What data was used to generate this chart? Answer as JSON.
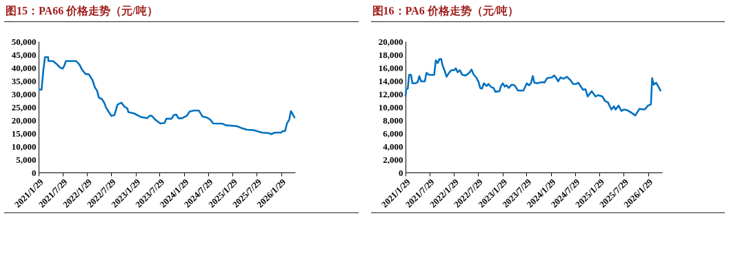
{
  "chart_data": [
    {
      "type": "line",
      "title": "图15：PA66 价格走势（元/吨）",
      "xlim": [
        "2021-01-29",
        "2026-05-15"
      ],
      "ylim": [
        0,
        50000
      ],
      "yticks": [
        {
          "value": 0,
          "label": "0"
        },
        {
          "value": 5000,
          "label": "5,000"
        },
        {
          "value": 10000,
          "label": "10,000"
        },
        {
          "value": 15000,
          "label": "15,000"
        },
        {
          "value": 20000,
          "label": "20,000"
        },
        {
          "value": 25000,
          "label": "25,000"
        },
        {
          "value": 30000,
          "label": "30,000"
        },
        {
          "value": 35000,
          "label": "35,000"
        },
        {
          "value": 40000,
          "label": "40,000"
        },
        {
          "value": 45000,
          "label": "45,000"
        },
        {
          "value": 50000,
          "label": "50,000"
        }
      ],
      "xticks": [
        {
          "value": "2021-01-29",
          "label": "2021/1/29"
        },
        {
          "value": "2021-07-29",
          "label": "2021/7/29"
        },
        {
          "value": "2022-01-29",
          "label": "2022/1/29"
        },
        {
          "value": "2022-07-29",
          "label": "2022/7/29"
        },
        {
          "value": "2023-01-29",
          "label": "2023/1/29"
        },
        {
          "value": "2023-07-29",
          "label": "2023/7/29"
        },
        {
          "value": "2024-01-29",
          "label": "2024/1/29"
        },
        {
          "value": "2024-07-29",
          "label": "2024/7/29"
        },
        {
          "value": "2025-01-29",
          "label": "2025/1/29"
        },
        {
          "value": "2025-07-29",
          "label": "2025/7/29"
        },
        {
          "value": "2026-01-29",
          "label": "2026/1/29"
        }
      ],
      "marker": "none",
      "line_style": "solid",
      "x": [
        "2021-01-29",
        "2021-02-20",
        "2021-03-06",
        "2021-03-18",
        "2021-04-10",
        "2021-04-13",
        "2021-05-18",
        "2021-06-13",
        "2021-07-10",
        "2021-07-30",
        "2021-08-13",
        "2021-08-22",
        "2021-11-08",
        "2021-12-04",
        "2021-12-22",
        "2022-01-17",
        "2022-02-12",
        "2022-03-11",
        "2022-03-28",
        "2022-04-14",
        "2022-04-28",
        "2022-05-19",
        "2022-06-06",
        "2022-06-23",
        "2022-07-10",
        "2022-07-31",
        "2022-08-23",
        "2022-09-15",
        "2022-10-14",
        "2022-11-06",
        "2022-11-27",
        "2022-12-06",
        "2023-01-19",
        "2023-03-13",
        "2023-04-26",
        "2023-05-14",
        "2023-05-31",
        "2023-06-27",
        "2023-08-04",
        "2023-09-04",
        "2023-09-18",
        "2023-10-27",
        "2023-11-13",
        "2023-12-01",
        "2023-12-18",
        "2024-01-14",
        "2024-02-18",
        "2024-03-11",
        "2024-04-10",
        "2024-05-20",
        "2024-06-15",
        "2024-07-15",
        "2024-08-10",
        "2024-09-05",
        "2024-11-14",
        "2024-12-10",
        "2025-02-27",
        "2025-04-03",
        "2025-05-17",
        "2025-07-08",
        "2025-09-07",
        "2025-10-30",
        "2025-11-16",
        "2025-12-12",
        "2026-01-28",
        "2026-02-11",
        "2026-02-28",
        "2026-03-14",
        "2026-03-31",
        "2026-04-13",
        "2026-04-30",
        "2026-05-09",
        "2026-05-15"
      ],
      "series": [
        {
          "color": "#0070c0",
          "values": [
            31600,
            31600,
            39200,
            44000,
            44000,
            42500,
            42500,
            41400,
            40000,
            39600,
            41000,
            42500,
            42500,
            41000,
            39200,
            37600,
            37400,
            35200,
            32500,
            31200,
            28500,
            28100,
            26700,
            24500,
            23200,
            21600,
            21900,
            25900,
            26600,
            25100,
            24500,
            23000,
            22500,
            21100,
            20700,
            21600,
            21600,
            20100,
            18700,
            18900,
            20500,
            20500,
            21900,
            22100,
            20700,
            20700,
            21600,
            23200,
            23600,
            23600,
            21400,
            21000,
            20300,
            18700,
            18600,
            18000,
            17700,
            17000,
            16300,
            16100,
            15200,
            15000,
            14600,
            15200,
            15200,
            15800,
            15800,
            18700,
            20100,
            23400,
            21900,
            21000,
            21100
          ]
        }
      ]
    },
    {
      "type": "line",
      "title": "图16：PA6 价格走势（元/吨）",
      "xlim": [
        "2021-01-29",
        "2026-05-15"
      ],
      "ylim": [
        0,
        20000
      ],
      "yticks": [
        {
          "value": 0,
          "label": "0"
        },
        {
          "value": 2000,
          "label": "2,000"
        },
        {
          "value": 4000,
          "label": "4,000"
        },
        {
          "value": 6000,
          "label": "6,000"
        },
        {
          "value": 8000,
          "label": "8,000"
        },
        {
          "value": 10000,
          "label": "10,000"
        },
        {
          "value": 12000,
          "label": "12,000"
        },
        {
          "value": 14000,
          "label": "14,000"
        },
        {
          "value": 16000,
          "label": "16,000"
        },
        {
          "value": 18000,
          "label": "18,000"
        },
        {
          "value": 20000,
          "label": "20,000"
        }
      ],
      "xticks": [
        {
          "value": "2021-01-29",
          "label": "2021/1/29"
        },
        {
          "value": "2021-07-29",
          "label": "2021/7/29"
        },
        {
          "value": "2022-01-29",
          "label": "2022/1/29"
        },
        {
          "value": "2022-07-29",
          "label": "2022/7/29"
        },
        {
          "value": "2023-01-29",
          "label": "2023/1/29"
        },
        {
          "value": "2023-07-29",
          "label": "2023/7/29"
        },
        {
          "value": "2024-01-29",
          "label": "2024/1/29"
        },
        {
          "value": "2024-07-29",
          "label": "2024/7/29"
        },
        {
          "value": "2025-01-29",
          "label": "2025/1/29"
        },
        {
          "value": "2025-07-29",
          "label": "2025/7/29"
        },
        {
          "value": "2026-01-29",
          "label": "2026/1/29"
        }
      ],
      "marker": "none",
      "line_style": "solid",
      "x": [
        "2021-01-29",
        "2021-02-03",
        "2021-02-15",
        "2021-02-25",
        "2021-03-11",
        "2021-03-22",
        "2021-04-13",
        "2021-05-01",
        "2021-05-13",
        "2021-05-27",
        "2021-06-23",
        "2021-07-06",
        "2021-07-23",
        "2021-09-02",
        "2021-09-14",
        "2021-09-28",
        "2021-10-12",
        "2021-10-25",
        "2021-11-03",
        "2021-11-20",
        "2021-12-04",
        "2021-12-22",
        "2022-01-08",
        "2022-01-29",
        "2022-02-12",
        "2022-02-25",
        "2022-03-14",
        "2022-04-01",
        "2022-04-27",
        "2022-05-24",
        "2022-06-10",
        "2022-06-24",
        "2022-07-15",
        "2022-08-02",
        "2022-08-14",
        "2022-08-28",
        "2022-09-11",
        "2022-10-02",
        "2022-10-16",
        "2022-11-06",
        "2022-11-23",
        "2022-12-07",
        "2023-01-06",
        "2023-01-18",
        "2023-02-01",
        "2023-02-15",
        "2023-02-28",
        "2023-03-17",
        "2023-04-09",
        "2023-04-30",
        "2023-05-26",
        "2023-07-06",
        "2023-07-31",
        "2023-08-17",
        "2023-08-31",
        "2023-09-14",
        "2023-09-26",
        "2023-10-14",
        "2023-11-26",
        "2023-12-10",
        "2024-01-01",
        "2024-02-04",
        "2024-02-22",
        "2024-03-06",
        "2024-03-24",
        "2024-04-10",
        "2024-05-01",
        "2024-05-28",
        "2024-06-23",
        "2024-07-14",
        "2024-08-06",
        "2024-08-23",
        "2024-09-10",
        "2024-09-27",
        "2024-10-15",
        "2024-11-01",
        "2024-12-01",
        "2024-12-29",
        "2025-01-18",
        "2025-02-19",
        "2025-03-12",
        "2025-04-02",
        "2025-04-28",
        "2025-05-17",
        "2025-05-30",
        "2025-06-21",
        "2025-07-12",
        "2025-08-02",
        "2025-08-25",
        "2025-09-20",
        "2025-10-25",
        "2025-11-25",
        "2026-01-03",
        "2026-01-29",
        "2026-02-20",
        "2026-03-01",
        "2026-03-13",
        "2026-03-31",
        "2026-04-17",
        "2026-05-05"
      ],
      "series": [
        {
          "color": "#0070c0",
          "values": [
            11600,
            12700,
            12800,
            14900,
            14900,
            13600,
            13600,
            13800,
            14700,
            13900,
            13900,
            15200,
            14900,
            14900,
            17100,
            16700,
            17300,
            17300,
            16400,
            15500,
            14600,
            15200,
            15600,
            15600,
            15900,
            15300,
            15600,
            14900,
            14800,
            15200,
            15700,
            15000,
            14500,
            13800,
            12900,
            12800,
            13600,
            13200,
            13500,
            13000,
            12900,
            12300,
            12400,
            13200,
            13600,
            13100,
            13300,
            12900,
            13400,
            13300,
            12500,
            12500,
            13600,
            13300,
            13600,
            14700,
            13700,
            13600,
            13800,
            13700,
            14400,
            14500,
            14800,
            14500,
            13900,
            14500,
            14300,
            14600,
            14100,
            13500,
            13500,
            13700,
            13100,
            12600,
            12700,
            11600,
            12400,
            11600,
            11800,
            11600,
            10900,
            10700,
            9600,
            10100,
            9600,
            10200,
            9400,
            9600,
            9500,
            9200,
            8700,
            9700,
            9600,
            10200,
            10400,
            14400,
            13400,
            13700,
            13100,
            12400
          ]
        }
      ]
    }
  ]
}
